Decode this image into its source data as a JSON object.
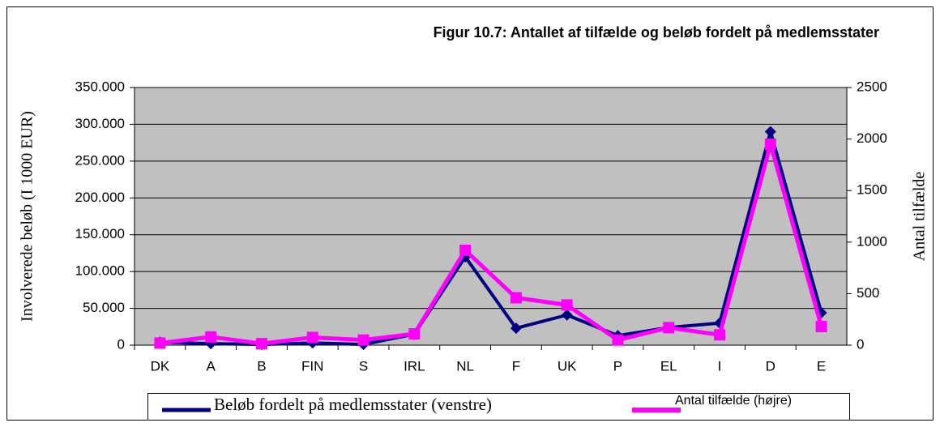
{
  "chart_data": {
    "type": "line",
    "title": "Figur 10.7: Antallet af tilfælde og beløb fordelt på medlemsstater",
    "ylabel": "Involverede beløb (I 1000 EUR)",
    "y2label": "Antal tilfælde",
    "categories": [
      "DK",
      "A",
      "B",
      "FIN",
      "S",
      "IRL",
      "NL",
      "F",
      "UK",
      "P",
      "EL",
      "I",
      "D",
      "E"
    ],
    "series": [
      {
        "name": "Beløb fordelt på medlemsstater (venstre)",
        "color": "#000080",
        "axis": "y",
        "values": [
          4000,
          2000,
          1000,
          3000,
          1000,
          15000,
          120000,
          23000,
          41000,
          13000,
          24000,
          30000,
          290000,
          44000
        ]
      },
      {
        "name": "Antal tilfælde (højre)",
        "color": "#ff00ff",
        "axis": "y2",
        "values": [
          20,
          80,
          15,
          75,
          50,
          110,
          920,
          460,
          390,
          50,
          170,
          100,
          1950,
          180
        ]
      }
    ],
    "ylim": [
      0,
      350000
    ],
    "yticks": [
      0,
      {
        "value": 50000,
        "label": "50.000"
      },
      {
        "value": 100000,
        "label": "100.000"
      },
      {
        "value": 150000,
        "label": "150.000"
      },
      {
        "value": 200000,
        "label": "200.000"
      },
      {
        "value": 250000,
        "label": "250.000"
      },
      {
        "value": 300000,
        "label": "300.000"
      },
      {
        "value": 350000,
        "label": "350.000"
      }
    ],
    "y2lim": [
      0,
      2500
    ],
    "y2ticks": [
      0,
      500,
      1000,
      1500,
      2000,
      2500
    ],
    "grid": true,
    "legend": "bottom"
  }
}
